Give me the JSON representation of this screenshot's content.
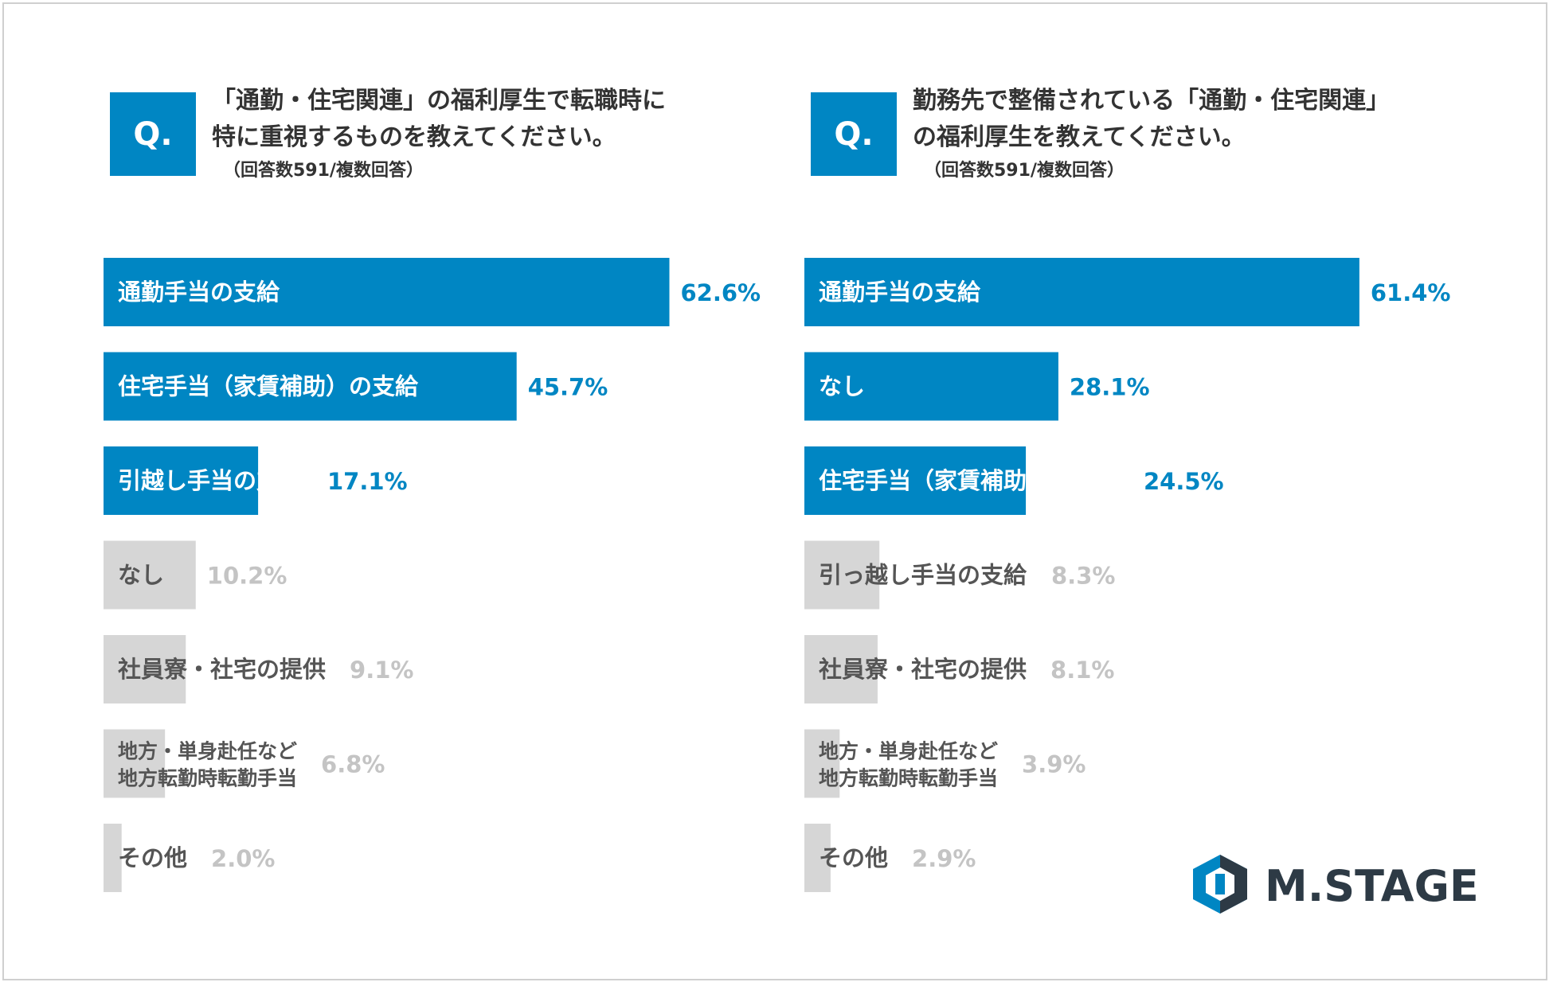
{
  "colors": {
    "highlight": "#0086c3",
    "muted": "#d6d6d6",
    "label_on_bar": "#ffffff",
    "label_dark": "#555555",
    "value_highlight": "#0086c3",
    "value_muted": "#c4c4c4",
    "logo": "#2d3a45"
  },
  "left": {
    "badge": "Q.",
    "question_line1": "「通勤・住宅関連」の福利厚生で転職時に",
    "question_line2": "特に重視するものを教えてください。",
    "note": "（回答数591/複数回答）"
  },
  "right": {
    "badge": "Q.",
    "question_line1": "勤務先で整備されている「通勤・住宅関連」",
    "question_line2": "の福利厚生を教えてください。",
    "note": "（回答数591/複数回答）"
  },
  "logo": {
    "text": "M.STAGE",
    "icon": "hexagon-logo-icon"
  },
  "chart_data": [
    {
      "type": "bar",
      "orientation": "horizontal",
      "categories": [
        "通勤手当の支給",
        "住宅手当（家賃補助）の支給",
        "引越し手当の支給",
        "なし",
        "社員寮・社宅の提供",
        "地方・単身赴任など\n地方転勤時転勤手当",
        "その他"
      ],
      "values": [
        62.6,
        45.7,
        17.1,
        10.2,
        9.1,
        6.8,
        2.0
      ],
      "value_labels": [
        "62.6%",
        "45.7%",
        "17.1%",
        "10.2%",
        "9.1%",
        "6.8%",
        "2.0%"
      ],
      "highlighted_count": 3,
      "xlim": [
        0,
        100
      ]
    },
    {
      "type": "bar",
      "orientation": "horizontal",
      "categories": [
        "通勤手当の支給",
        "なし",
        "住宅手当（家賃補助）の支給",
        "引っ越し手当の支給",
        "社員寮・社宅の提供",
        "地方・単身赴任など\n地方転勤時転勤手当",
        "その他"
      ],
      "values": [
        61.4,
        28.1,
        24.5,
        8.3,
        8.1,
        3.9,
        2.9
      ],
      "value_labels": [
        "61.4%",
        "28.1%",
        "24.5%",
        "8.3%",
        "8.1%",
        "3.9%",
        "2.9%"
      ],
      "highlighted_count": 3,
      "xlim": [
        0,
        100
      ]
    }
  ]
}
